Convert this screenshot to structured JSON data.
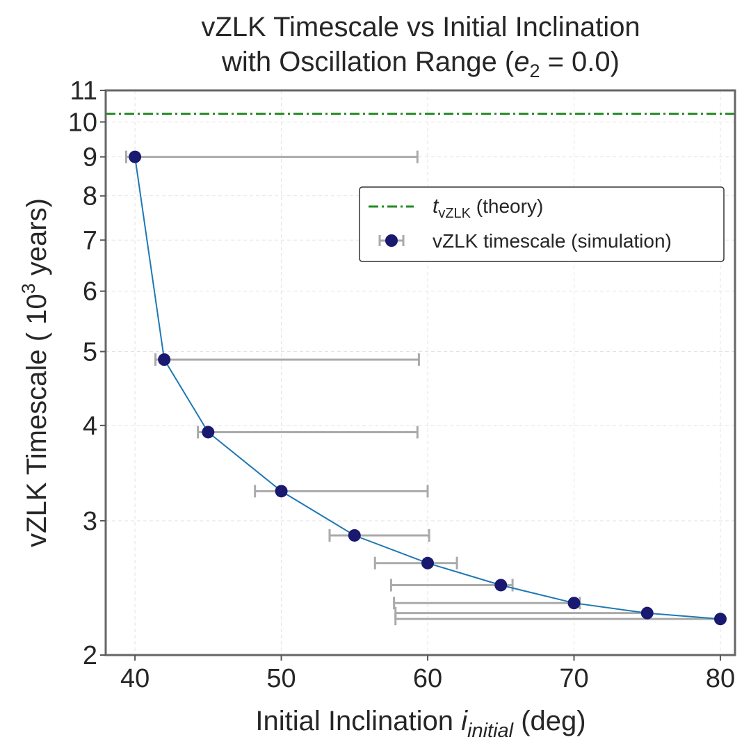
{
  "chart_data": {
    "type": "scatter",
    "title_line1": "vZLK Timescale vs Initial Inclination",
    "title_line2_prefix": "with Oscillation Range (",
    "title_line2_var": "e",
    "title_line2_sub": "2",
    "title_line2_suffix": " = 0.0)",
    "xlabel_prefix": "Initial Inclination ",
    "xlabel_var": "i",
    "xlabel_sub": "initial",
    "xlabel_suffix": " (deg)",
    "ylabel_prefix": "vZLK Timescale ( 10",
    "ylabel_sup": "3",
    "ylabel_suffix": " years)",
    "xlim": [
      38,
      81
    ],
    "ylim": [
      2,
      11
    ],
    "yscale": "log",
    "xticks": [
      40,
      50,
      60,
      70,
      80
    ],
    "yticks": [
      2,
      3,
      4,
      5,
      6,
      7,
      8,
      9,
      10,
      11
    ],
    "grid": true,
    "legend_position": "upper-right",
    "theory": {
      "label_var": "t",
      "label_sub": "vZLK",
      "label_suffix": " (theory)",
      "value": 10.25,
      "color": "#228B22"
    },
    "simulation": {
      "label": "vZLK timescale (simulation)",
      "marker_color": "#191970",
      "line_color": "#1f77b4",
      "errorbar_color": "#aaaaaa",
      "points": [
        {
          "x": 40,
          "y": 9.0,
          "xmin": 39.4,
          "xmax": 59.3
        },
        {
          "x": 42,
          "y": 4.88,
          "xmin": 41.4,
          "xmax": 59.4
        },
        {
          "x": 45,
          "y": 3.92,
          "xmin": 44.3,
          "xmax": 59.3
        },
        {
          "x": 50,
          "y": 3.28,
          "xmin": 48.2,
          "xmax": 60.0
        },
        {
          "x": 55,
          "y": 2.87,
          "xmin": 53.3,
          "xmax": 60.1
        },
        {
          "x": 60,
          "y": 2.64,
          "xmin": 56.4,
          "xmax": 62.0
        },
        {
          "x": 65,
          "y": 2.47,
          "xmin": 57.5,
          "xmax": 65.8
        },
        {
          "x": 70,
          "y": 2.34,
          "xmin": 57.7,
          "xmax": 70.4
        },
        {
          "x": 75,
          "y": 2.27,
          "xmin": 57.8,
          "xmax": 74.9
        },
        {
          "x": 80,
          "y": 2.23,
          "xmin": 57.8,
          "xmax": 80.0
        }
      ]
    }
  }
}
